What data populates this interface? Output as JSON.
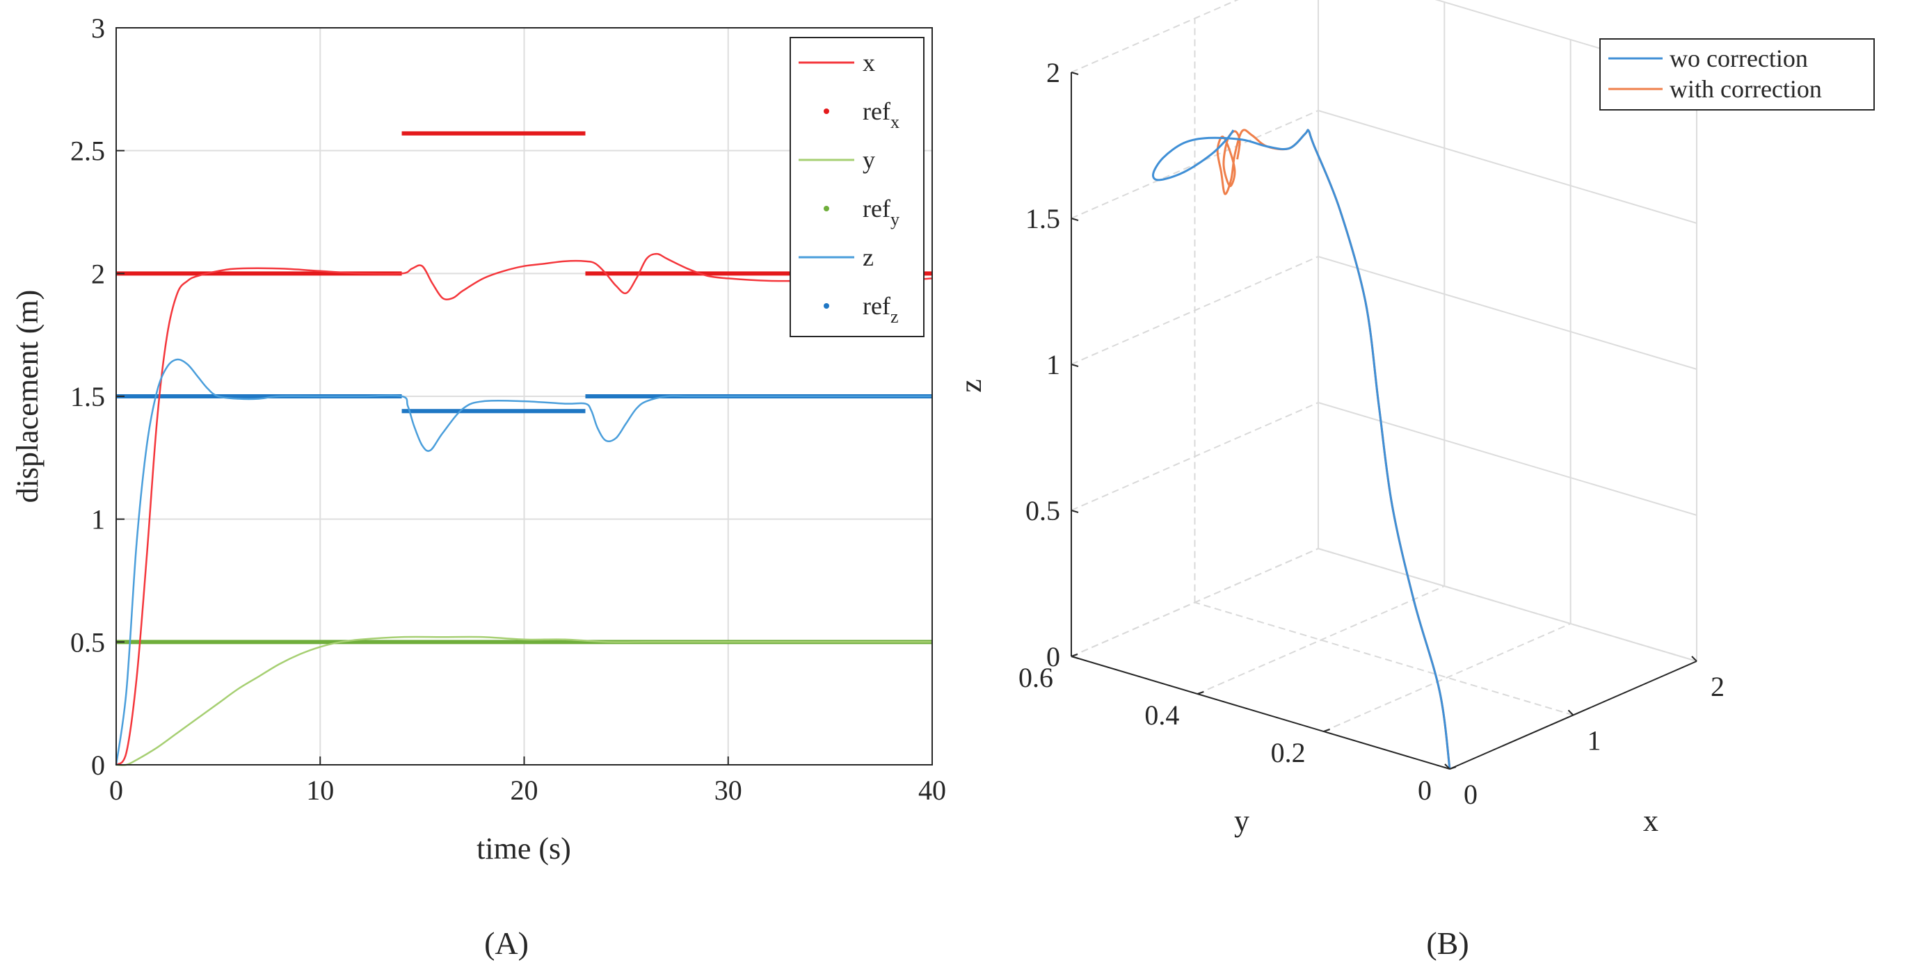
{
  "chart_data": [
    {
      "type": "line",
      "panel_caption": "(A)",
      "xlabel": "time (s)",
      "ylabel": "displacement (m)",
      "xlim": [
        0,
        40
      ],
      "ylim": [
        0,
        3
      ],
      "xticks": [
        "0",
        "10",
        "20",
        "30",
        "40"
      ],
      "yticks": [
        "0",
        "0.5",
        "1",
        "1.5",
        "2",
        "2.5",
        "3"
      ],
      "grid": true,
      "legend_position": "top-right",
      "colors": {
        "x": "#f4363b",
        "ref_x": "#e41a1c",
        "y": "#a6cf72",
        "ref_y": "#6fae3b",
        "z": "#4a9edb",
        "ref_z": "#1f77c4"
      },
      "legend": [
        {
          "label": "x",
          "sub": "",
          "kind": "line",
          "series": "x"
        },
        {
          "label": "ref",
          "sub": "x",
          "kind": "dot",
          "series": "ref_x"
        },
        {
          "label": "y",
          "sub": "",
          "kind": "line",
          "series": "y"
        },
        {
          "label": "ref",
          "sub": "y",
          "kind": "dot",
          "series": "ref_y"
        },
        {
          "label": "z",
          "sub": "",
          "kind": "line",
          "series": "z"
        },
        {
          "label": "ref",
          "sub": "z",
          "kind": "dot",
          "series": "ref_z"
        }
      ],
      "reference_segments": {
        "ref_x": [
          [
            0,
            14,
            2.0
          ],
          [
            14,
            23,
            2.57
          ],
          [
            23,
            40,
            2.0
          ]
        ],
        "ref_y": [
          [
            0,
            40,
            0.5
          ]
        ],
        "ref_z": [
          [
            0,
            14,
            1.5
          ],
          [
            14,
            23,
            1.44
          ],
          [
            23,
            40,
            1.5
          ]
        ]
      },
      "series": [
        {
          "name": "x",
          "x": [
            0,
            0.5,
            1,
            1.5,
            2,
            2.5,
            3,
            3.5,
            4,
            5,
            6,
            8,
            10,
            12,
            14,
            14.5,
            15,
            15.5,
            16,
            16.5,
            17,
            18,
            19,
            20,
            21,
            22,
            23,
            23.5,
            24,
            24.5,
            25,
            25.5,
            26,
            26.5,
            27,
            28,
            29,
            30,
            32,
            34,
            36,
            38,
            40
          ],
          "y": [
            0,
            0.05,
            0.35,
            0.85,
            1.4,
            1.75,
            1.92,
            1.97,
            1.99,
            2.01,
            2.02,
            2.02,
            2.01,
            2.0,
            2.0,
            2.02,
            2.03,
            1.96,
            1.9,
            1.9,
            1.93,
            1.98,
            2.01,
            2.03,
            2.04,
            2.05,
            2.05,
            2.04,
            2.0,
            1.95,
            1.92,
            1.98,
            2.06,
            2.08,
            2.06,
            2.02,
            1.99,
            1.98,
            1.97,
            1.97,
            1.97,
            1.97,
            1.98
          ]
        },
        {
          "name": "y",
          "x": [
            0,
            0.5,
            1,
            2,
            3,
            4,
            5,
            6,
            7,
            8,
            9,
            10,
            11,
            12,
            14,
            16,
            18,
            20,
            22,
            24,
            26,
            30,
            35,
            40
          ],
          "y": [
            0,
            0,
            0.02,
            0.07,
            0.13,
            0.19,
            0.25,
            0.31,
            0.36,
            0.41,
            0.45,
            0.48,
            0.5,
            0.51,
            0.52,
            0.52,
            0.52,
            0.51,
            0.51,
            0.5,
            0.5,
            0.5,
            0.5,
            0.5
          ]
        },
        {
          "name": "z",
          "x": [
            0,
            0.5,
            1,
            1.5,
            2,
            2.5,
            3,
            3.5,
            4,
            4.5,
            5,
            6,
            7,
            8,
            10,
            12,
            14,
            14.3,
            14.6,
            15,
            15.4,
            16,
            17,
            18,
            20,
            22,
            23,
            23.3,
            23.6,
            24,
            24.5,
            25,
            25.5,
            26,
            27,
            28,
            30,
            35,
            40
          ],
          "y": [
            0,
            0.3,
            0.9,
            1.3,
            1.52,
            1.62,
            1.65,
            1.63,
            1.58,
            1.53,
            1.5,
            1.49,
            1.49,
            1.5,
            1.5,
            1.5,
            1.5,
            1.46,
            1.38,
            1.3,
            1.28,
            1.35,
            1.45,
            1.48,
            1.48,
            1.47,
            1.47,
            1.44,
            1.37,
            1.32,
            1.33,
            1.39,
            1.45,
            1.48,
            1.5,
            1.5,
            1.5,
            1.5,
            1.5
          ]
        }
      ]
    },
    {
      "type": "line3d",
      "panel_caption": "(B)",
      "xlabel": "x",
      "ylabel": "y",
      "zlabel": "z",
      "xlim": [
        0,
        2
      ],
      "ylim": [
        0,
        0.6
      ],
      "zlim": [
        0,
        2
      ],
      "xticks": [
        {
          "v": 0,
          "t": "0"
        },
        {
          "v": 1,
          "t": "1"
        },
        {
          "v": 2,
          "t": "2"
        }
      ],
      "yticks": [
        {
          "v": 0,
          "t": "0"
        },
        {
          "v": 0.2,
          "t": "0.2"
        },
        {
          "v": 0.4,
          "t": "0.4"
        },
        {
          "v": 0.6,
          "t": "0.6"
        }
      ],
      "zticks": [
        {
          "v": 0,
          "t": "0"
        },
        {
          "v": 0.5,
          "t": "0.5"
        },
        {
          "v": 1,
          "t": "1"
        },
        {
          "v": 1.5,
          "t": "1.5"
        },
        {
          "v": 2,
          "t": "2"
        }
      ],
      "grid": true,
      "legend_position": "top-right",
      "legend": [
        {
          "label": "wo correction",
          "color": "#3f8fd6"
        },
        {
          "label": "with correction",
          "color": "#ef7f4a"
        }
      ],
      "series": [
        {
          "name": "wo correction",
          "color": "#3f8fd6",
          "points": [
            [
              0,
              0,
              0
            ],
            [
              0.02,
              0.02,
              0.25
            ],
            [
              0.12,
              0.08,
              0.5
            ],
            [
              0.3,
              0.15,
              0.75
            ],
            [
              0.55,
              0.22,
              1.0
            ],
            [
              0.85,
              0.3,
              1.25
            ],
            [
              1.15,
              0.4,
              1.45
            ],
            [
              1.35,
              0.48,
              1.58
            ],
            [
              1.36,
              0.49,
              1.62
            ],
            [
              1.28,
              0.48,
              1.63
            ],
            [
              1.1,
              0.47,
              1.62
            ],
            [
              0.92,
              0.47,
              1.66
            ],
            [
              0.72,
              0.47,
              1.72
            ],
            [
              0.5,
              0.48,
              1.76
            ],
            [
              0.3,
              0.48,
              1.78
            ],
            [
              0.13,
              0.48,
              1.76
            ],
            [
              0.05,
              0.48,
              1.72
            ],
            [
              0.1,
              0.48,
              1.69
            ],
            [
              0.3,
              0.48,
              1.68
            ],
            [
              0.52,
              0.48,
              1.7
            ],
            [
              0.65,
              0.48,
              1.73
            ],
            [
              0.7,
              0.48,
              1.75
            ]
          ]
        },
        {
          "name": "with correction",
          "color": "#ef7f4a",
          "points": [
            [
              0,
              0,
              0
            ],
            [
              0.02,
              0.02,
              0.25
            ],
            [
              0.12,
              0.08,
              0.5
            ],
            [
              0.3,
              0.15,
              0.75
            ],
            [
              0.55,
              0.22,
              1.0
            ],
            [
              0.85,
              0.3,
              1.25
            ],
            [
              1.15,
              0.4,
              1.45
            ],
            [
              1.35,
              0.48,
              1.58
            ],
            [
              1.36,
              0.49,
              1.62
            ],
            [
              1.28,
              0.48,
              1.63
            ],
            [
              1.1,
              0.47,
              1.62
            ],
            [
              0.92,
              0.47,
              1.66
            ],
            [
              0.8,
              0.47,
              1.72
            ],
            [
              0.72,
              0.47,
              1.75
            ],
            [
              0.66,
              0.47,
              1.68
            ],
            [
              0.63,
              0.47,
              1.6
            ],
            [
              0.58,
              0.47,
              1.56
            ],
            [
              0.55,
              0.47,
              1.64
            ],
            [
              0.52,
              0.47,
              1.72
            ],
            [
              0.56,
              0.47,
              1.76
            ],
            [
              0.62,
              0.47,
              1.7
            ],
            [
              0.66,
              0.47,
              1.62
            ],
            [
              0.62,
              0.47,
              1.58
            ],
            [
              0.57,
              0.47,
              1.66
            ],
            [
              0.6,
              0.47,
              1.74
            ],
            [
              0.66,
              0.47,
              1.76
            ],
            [
              0.7,
              0.47,
              1.72
            ],
            [
              0.68,
              0.47,
              1.66
            ]
          ]
        }
      ]
    }
  ]
}
